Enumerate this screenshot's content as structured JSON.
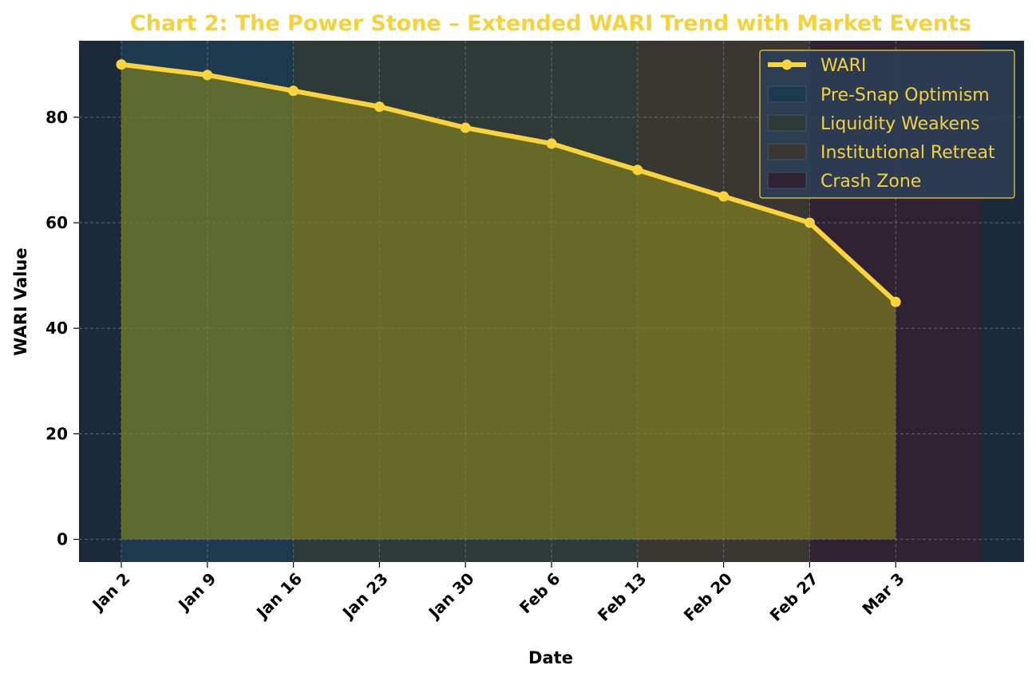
{
  "colors": {
    "background": "#1b2a3b",
    "line": "#fbd43c",
    "fill": "#8a8a1e",
    "grid": "#8a96a6",
    "title": "#f5d23c",
    "legend_bg": "#2c3e55",
    "legend_border": "#f5d23c",
    "legend_text": "#f5d23c"
  },
  "chart_data": {
    "type": "line",
    "title": "Chart 2: The Power Stone – Extended WARI Trend with Market Events",
    "xlabel": "Date",
    "ylabel": "WARI Value",
    "x": [
      "Jan 2",
      "Jan 9",
      "Jan 16",
      "Jan 23",
      "Jan 30",
      "Feb 6",
      "Feb 13",
      "Feb 20",
      "Feb 27",
      "Mar 3"
    ],
    "series": [
      {
        "name": "WARI",
        "values": [
          90,
          88,
          85,
          82,
          78,
          75,
          70,
          65,
          60,
          45
        ]
      }
    ],
    "yticks": [
      0,
      20,
      40,
      60,
      80
    ],
    "ylim": [
      -4.3,
      94.5
    ],
    "grid": true,
    "area_fill": true,
    "legend_position": "top-right",
    "event_bands": [
      {
        "name": "Pre-Snap Optimism",
        "start": "Jan 2",
        "end": "Jan 16",
        "color": "#1e3a4f"
      },
      {
        "name": "Liquidity Weakens",
        "start": "Jan 16",
        "end": "Feb 13",
        "color": "#2e3a37"
      },
      {
        "name": "Institutional Retreat",
        "start": "Feb 13",
        "end": "Feb 27",
        "color": "#3a3733"
      },
      {
        "name": "Crash Zone",
        "start": "Feb 27",
        "end": "Mar 10",
        "color": "#2f2233"
      }
    ]
  }
}
